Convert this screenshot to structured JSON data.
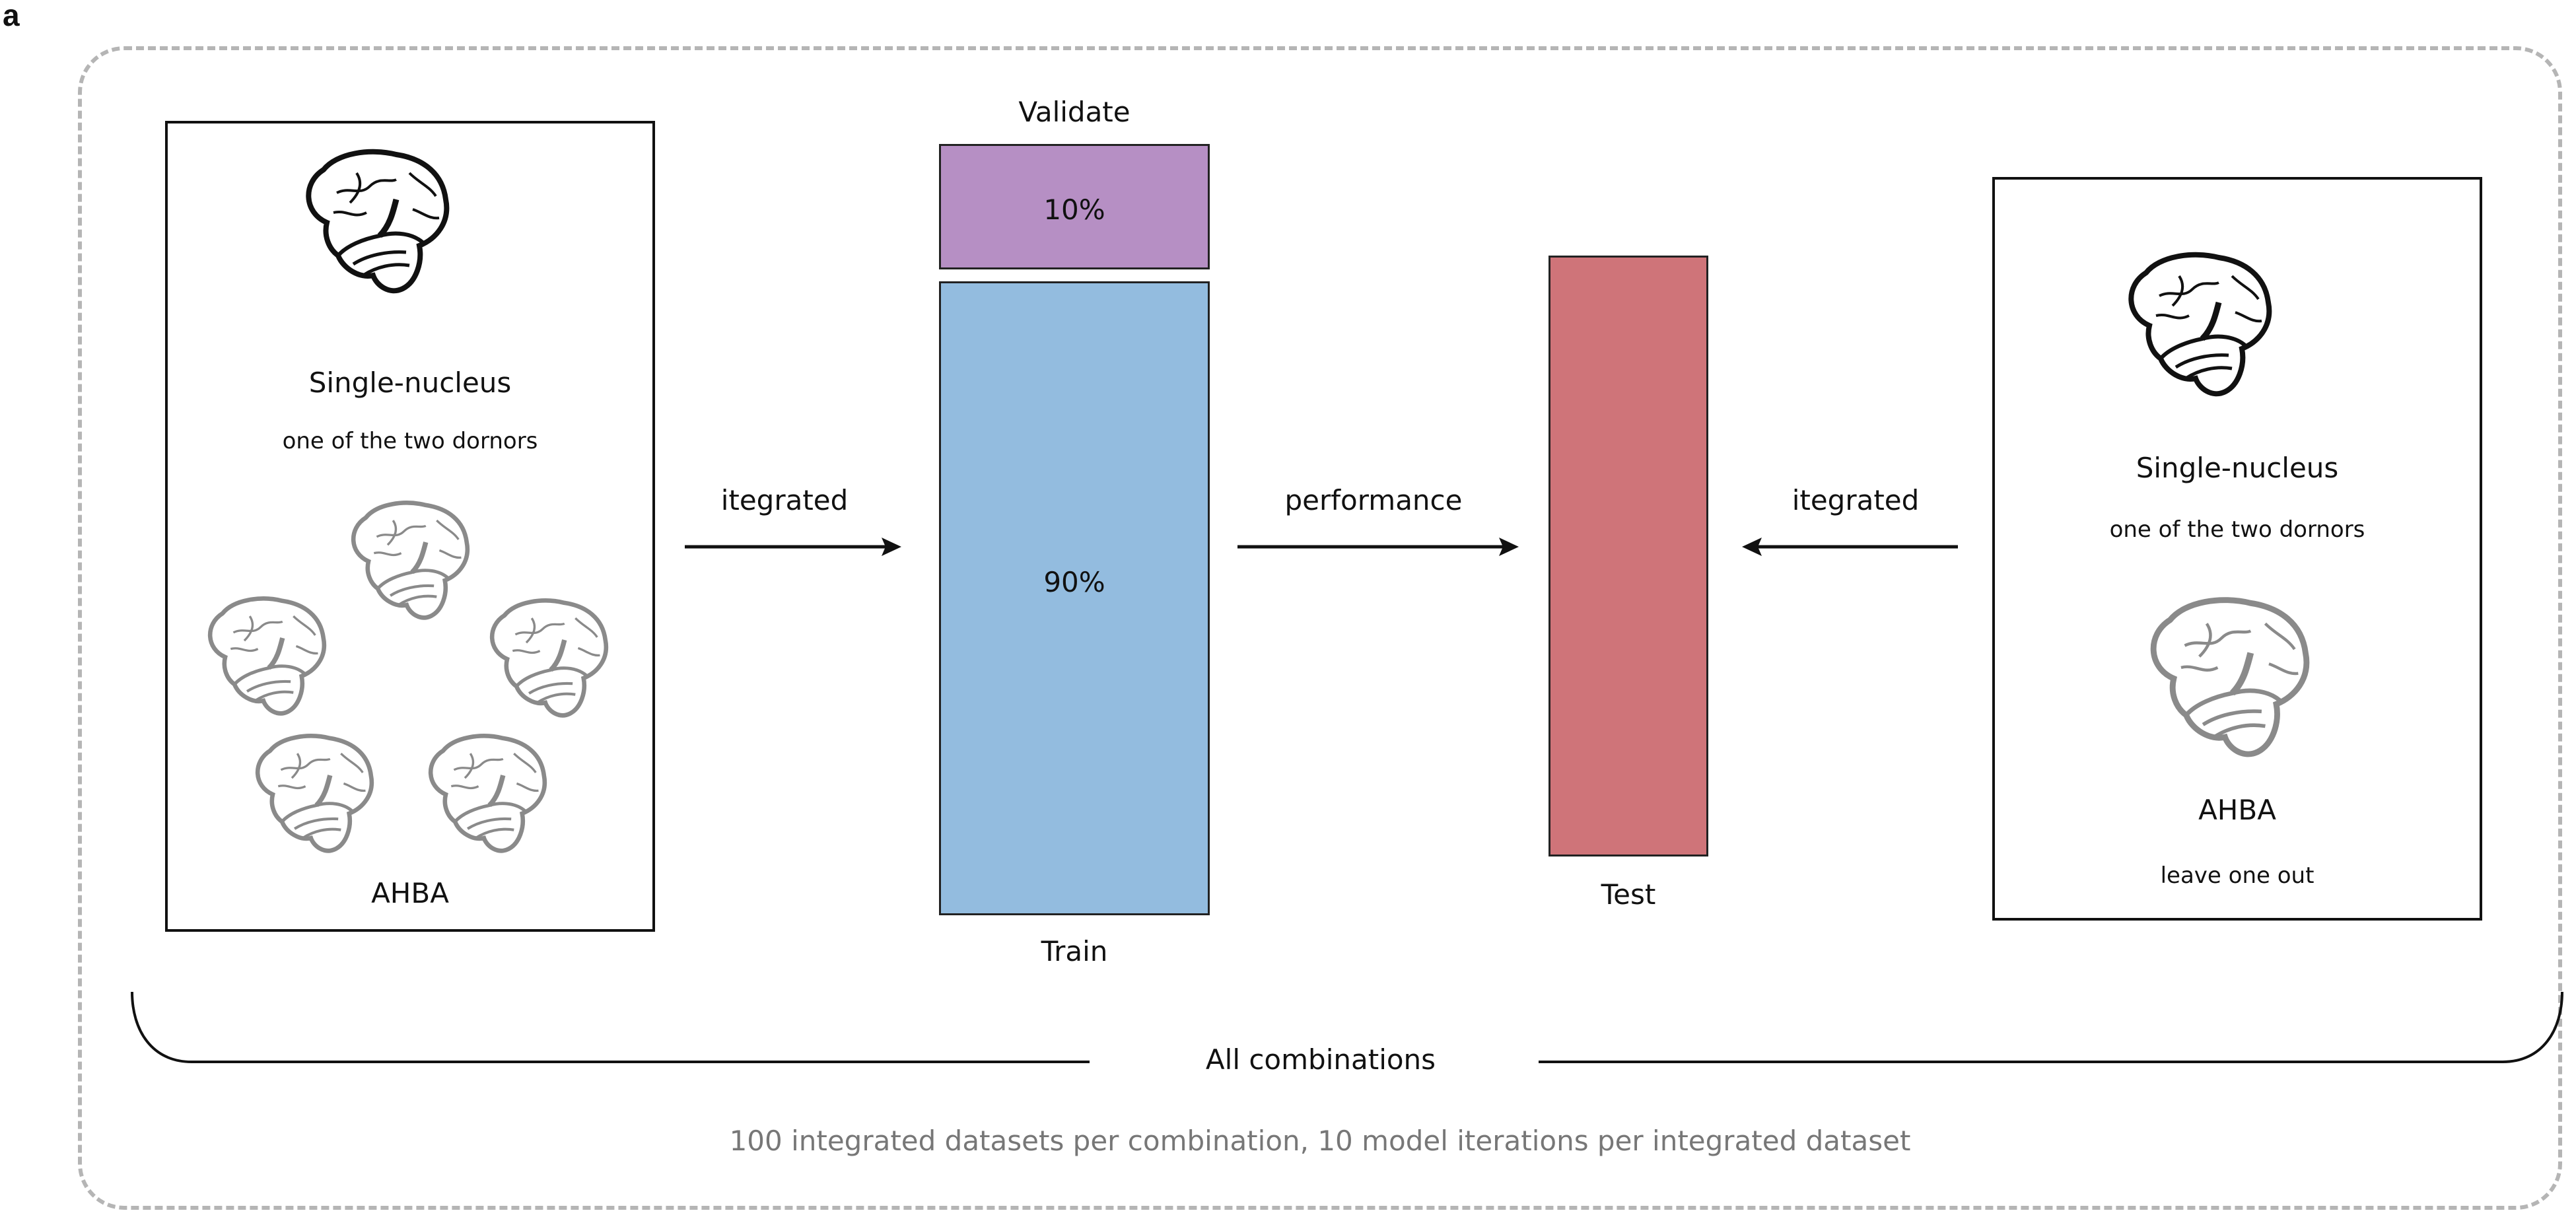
{
  "panel_letter": "a",
  "left_box": {
    "title": "Single-nucleus",
    "subtitle": "one of the two dornors",
    "bottom_label": "AHBA"
  },
  "right_box": {
    "title": "Single-nucleus",
    "subtitle": "one of the two dornors",
    "bottom_label": "AHBA",
    "bottom_sublabel": "leave one out"
  },
  "split": {
    "validate_label": "Validate",
    "validate_pct": "10%",
    "train_pct": "90%",
    "train_label": "Train"
  },
  "test_label": "Test",
  "arrows": {
    "left": "itegrated",
    "middle": "performance",
    "right": "itegrated"
  },
  "bracket_label": "All combinations",
  "footer": "100 integrated datasets per combination, 10 model iterations per integrated dataset",
  "colors": {
    "validate": "#b68fc4",
    "train": "#93bcdf",
    "test": "#cf7479",
    "dashed_border": "#b5b5b5"
  },
  "icons": [
    "brain-icon"
  ]
}
